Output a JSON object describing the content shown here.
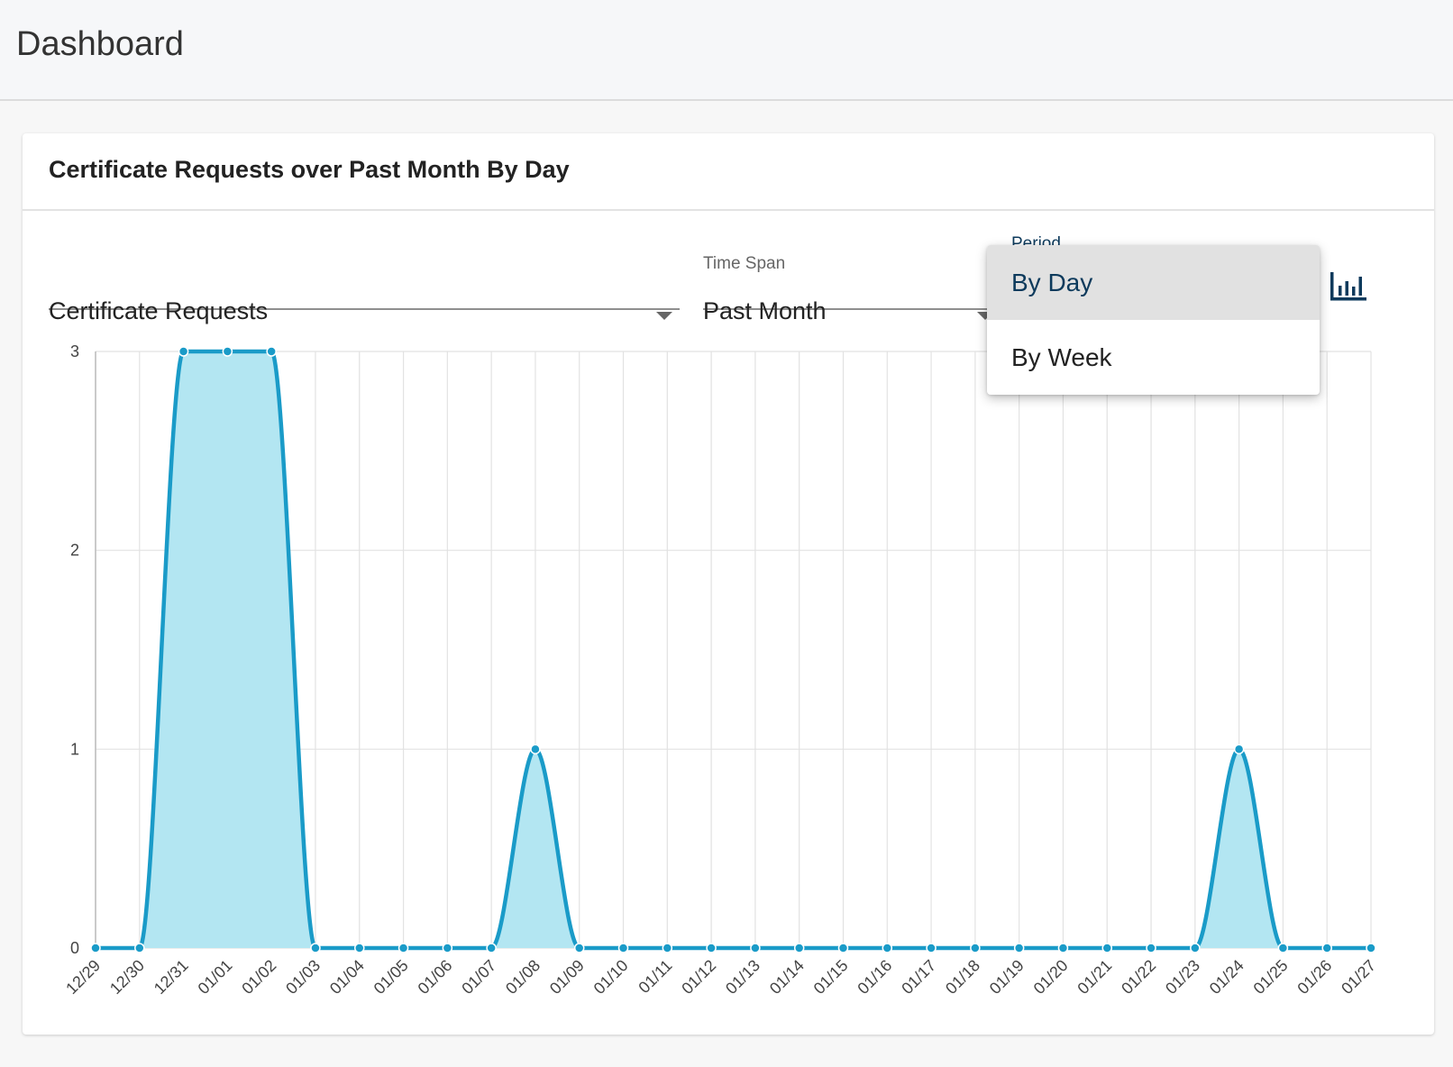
{
  "header": {
    "title": "Dashboard"
  },
  "card": {
    "title": "Certificate Requests over Past Month By Day"
  },
  "controls": {
    "metric": {
      "value": "Certificate Requests"
    },
    "time_span": {
      "label": "Time Span",
      "value": "Past Month"
    },
    "period": {
      "label": "Period",
      "options": [
        "By Day",
        "By Week"
      ],
      "selected": "By Day"
    },
    "chart_toggle_icon": "bar-chart-icon"
  },
  "colors": {
    "line": "#1a9bc8",
    "fill": "#b3e6f2",
    "accent": "#0d3a5c"
  },
  "chart_data": {
    "type": "area",
    "x": [
      "12/29",
      "12/30",
      "12/31",
      "01/01",
      "01/02",
      "01/03",
      "01/04",
      "01/05",
      "01/06",
      "01/07",
      "01/08",
      "01/09",
      "01/10",
      "01/11",
      "01/12",
      "01/13",
      "01/14",
      "01/15",
      "01/16",
      "01/17",
      "01/18",
      "01/19",
      "01/20",
      "01/21",
      "01/22",
      "01/23",
      "01/24",
      "01/25",
      "01/26",
      "01/27"
    ],
    "values": [
      0,
      0,
      3,
      3,
      3,
      0,
      0,
      0,
      0,
      0,
      1,
      0,
      0,
      0,
      0,
      0,
      0,
      0,
      0,
      0,
      0,
      0,
      0,
      0,
      0,
      0,
      1,
      0,
      0,
      0
    ],
    "ylim": [
      0,
      3
    ],
    "yticks": [
      0,
      1,
      2,
      3
    ],
    "grid": true,
    "legend": "none"
  }
}
